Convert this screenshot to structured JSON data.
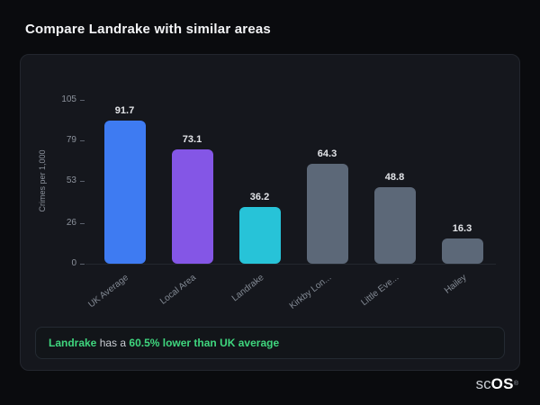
{
  "page": {
    "title": "Compare Landrake with similar areas"
  },
  "chart_data": {
    "type": "bar",
    "categories": [
      "UK Average",
      "Local Area",
      "Landrake",
      "Kirkby Lon...",
      "Little Eve...",
      "Hailey"
    ],
    "values": [
      91.7,
      73.1,
      36.2,
      64.3,
      48.8,
      16.3
    ],
    "bar_colors": [
      "#3e7bf2",
      "#8456e6",
      "#27c3d8",
      "#5c6878",
      "#5c6878",
      "#5c6878"
    ],
    "title": "",
    "xlabel": "",
    "ylabel": "Crimes per 1,000",
    "yticks": [
      0,
      26,
      53,
      79,
      105
    ],
    "ylim": [
      0,
      105
    ],
    "grid": false,
    "legend": false
  },
  "note": {
    "area_name": "Landrake",
    "middle_text": " has a ",
    "highlight_text": "60.5% lower than UK average"
  },
  "logo": {
    "prefix": "sc",
    "suffix": "OS",
    "registered": "®"
  },
  "colors": {
    "background": "#0a0b0e",
    "card": "#15171d",
    "green_accent": "#3fd67e"
  }
}
